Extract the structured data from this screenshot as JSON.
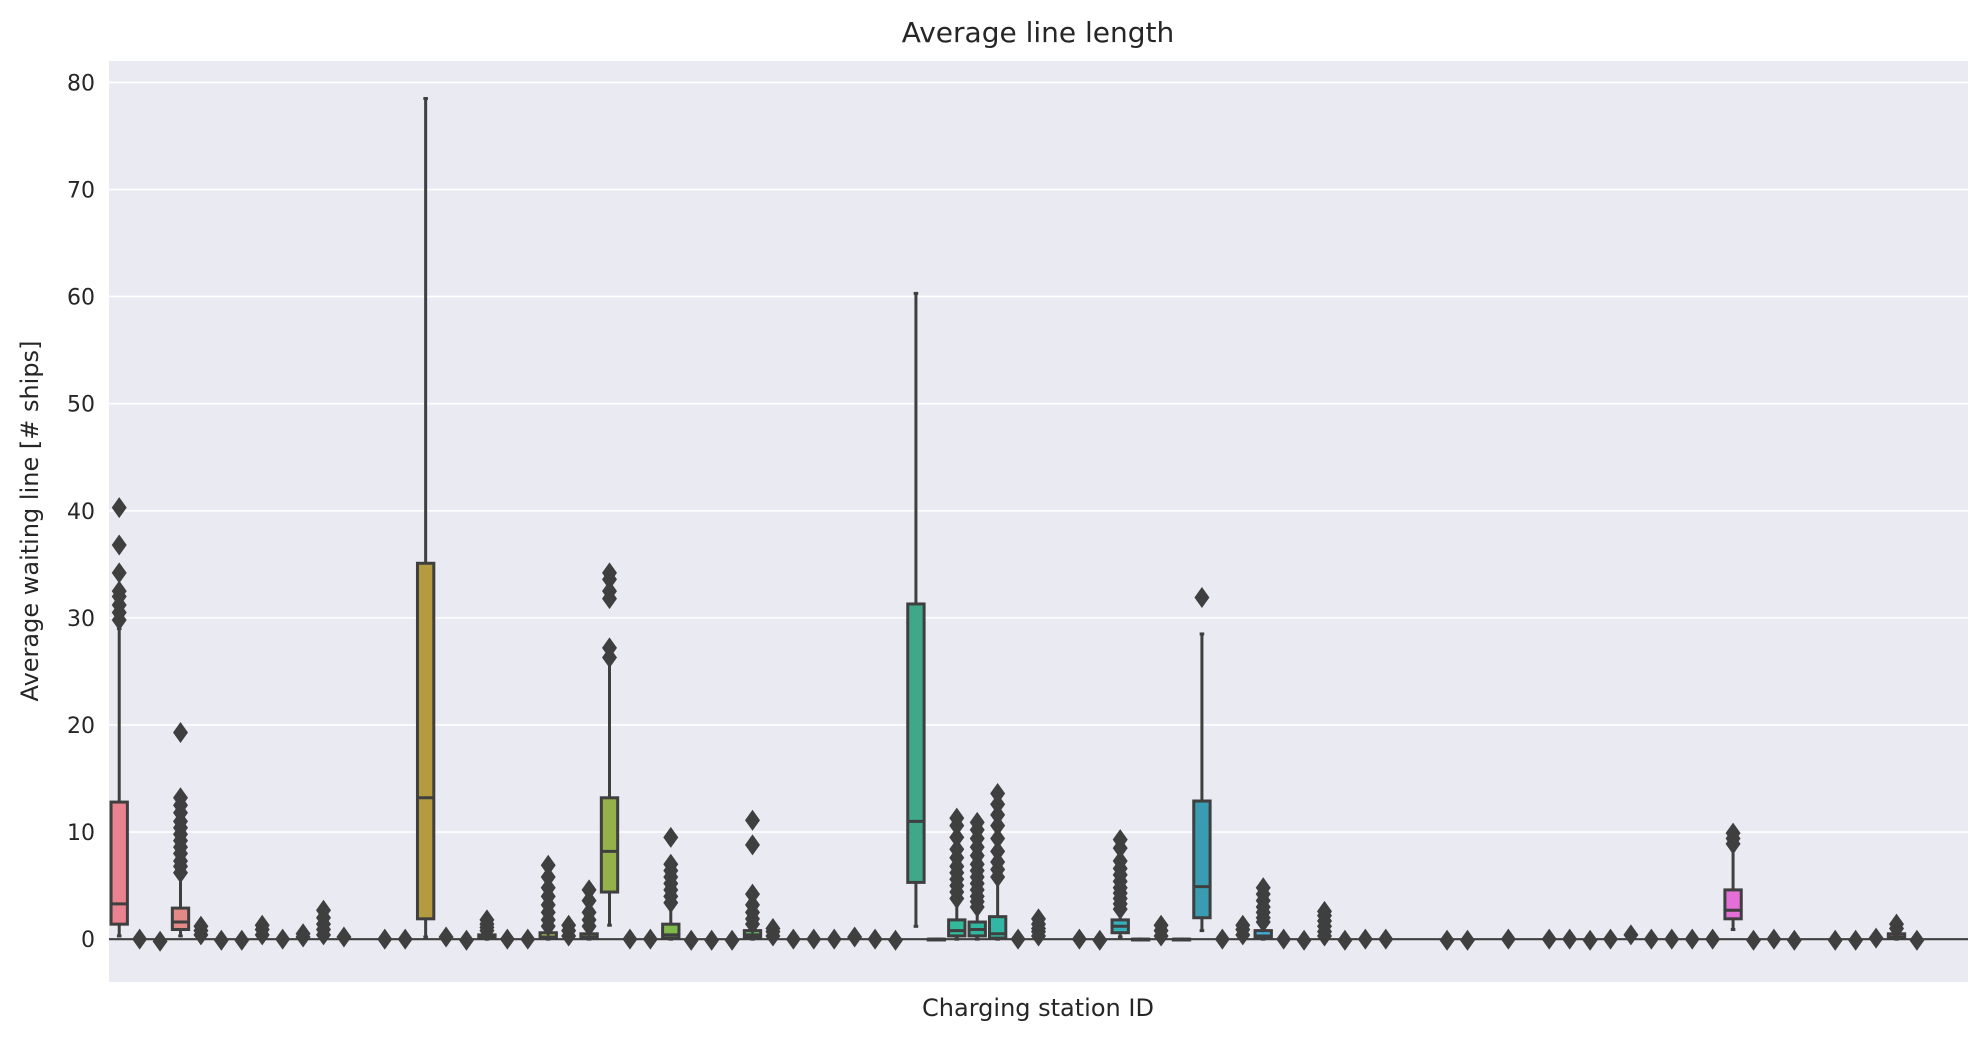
{
  "chart_data": {
    "type": "box",
    "title": "Average line length",
    "xlabel": "Charging station ID",
    "ylabel": "Average waiting line [# ships]",
    "ylim": [
      -4,
      82
    ],
    "yticks": [
      0,
      10,
      20,
      30,
      40,
      50,
      60,
      70,
      80
    ],
    "grid": true,
    "background": "#eaeaf2",
    "box_edge_color": "#3f3f3f",
    "n_positions": 91,
    "boxes": [
      {
        "pos": 0,
        "min": 0.3,
        "q1": 1.4,
        "median": 3.3,
        "q3": 12.8,
        "max": 29,
        "fill": "#e8838f",
        "outliers": [
          29.8,
          30.5,
          31.2,
          32.0,
          32.5,
          34.2,
          36.8,
          40.3
        ]
      },
      {
        "pos": 1,
        "fill": "#e8868c",
        "outliers": [
          0.0
        ]
      },
      {
        "pos": 2,
        "fill": "#e8888a",
        "outliers": [
          -0.2
        ]
      },
      {
        "pos": 3,
        "min": 0.3,
        "q1": 0.9,
        "median": 1.6,
        "q3": 2.9,
        "max": 5.8,
        "fill": "#e38a87",
        "outliers": [
          6.2,
          6.8,
          7.3,
          8.0,
          8.6,
          9.2,
          9.8,
          10.4,
          11.0,
          11.8,
          12.5,
          13.2,
          19.3
        ]
      },
      {
        "pos": 4,
        "fill": "#e08d84",
        "outliers": [
          0.4,
          0.8,
          1.2
        ]
      },
      {
        "pos": 5,
        "fill": "#de9080",
        "outliers": [
          -0.1
        ]
      },
      {
        "pos": 6,
        "fill": "#dc927d",
        "outliers": [
          -0.1
        ]
      },
      {
        "pos": 7,
        "fill": "#d9957a",
        "outliers": [
          0.4,
          0.9,
          1.3
        ]
      },
      {
        "pos": 8,
        "fill": "#d69877",
        "outliers": [
          0.0
        ]
      },
      {
        "pos": 9,
        "fill": "#d29b73",
        "outliers": [
          0.2,
          0.5
        ]
      },
      {
        "pos": 10,
        "fill": "#cf9e70",
        "outliers": [
          0.4,
          0.9,
          1.4,
          2.0,
          2.7
        ]
      },
      {
        "pos": 11,
        "fill": "#cca06c",
        "outliers": [
          0.2
        ]
      },
      {
        "pos": 12,
        "fill": "#c9a369",
        "outliers": []
      },
      {
        "pos": 13,
        "fill": "#c6a566",
        "outliers": [
          0.0
        ]
      },
      {
        "pos": 14,
        "fill": "#c3a764",
        "outliers": [
          0.0
        ]
      },
      {
        "pos": 15,
        "min": 0.2,
        "q1": 1.9,
        "median": 13.2,
        "q3": 35.1,
        "max": 78.5,
        "fill": "#b59b3f",
        "outliers": []
      },
      {
        "pos": 16,
        "fill": "#bdaa5f",
        "outliers": [
          0.2
        ]
      },
      {
        "pos": 17,
        "fill": "#b9ad5c",
        "outliers": [
          -0.1
        ]
      },
      {
        "pos": 18,
        "min": 0.0,
        "q1": 0.1,
        "median": 0.2,
        "q3": 0.4,
        "max": 0.6,
        "fill": "#b5af5a",
        "outliers": [
          0.8,
          1.1,
          1.4,
          1.8
        ]
      },
      {
        "pos": 19,
        "fill": "#b1b158",
        "outliers": [
          0.0
        ]
      },
      {
        "pos": 20,
        "fill": "#adb356",
        "outliers": [
          0.0
        ]
      },
      {
        "pos": 21,
        "min": 0.0,
        "q1": 0.1,
        "median": 0.2,
        "q3": 0.6,
        "max": 0.9,
        "fill": "#a9b554",
        "outliers": [
          1.2,
          1.8,
          2.5,
          3.2,
          4.0,
          4.8,
          5.8,
          6.9
        ]
      },
      {
        "pos": 22,
        "fill": "#a5b652",
        "outliers": [
          0.3,
          0.8,
          1.3
        ]
      },
      {
        "pos": 23,
        "min": 0.0,
        "q1": 0.1,
        "median": 0.2,
        "q3": 0.5,
        "max": 0.8,
        "fill": "#a1b850",
        "outliers": [
          1.2,
          1.8,
          2.5,
          3.6,
          4.6
        ]
      },
      {
        "pos": 24,
        "min": 1.3,
        "q1": 4.4,
        "median": 8.2,
        "q3": 13.2,
        "max": 25.8,
        "fill": "#95b14a",
        "outliers": [
          26.3,
          27.2,
          31.8,
          32.5,
          33.6,
          34.2
        ]
      },
      {
        "pos": 25,
        "fill": "#8eba4f",
        "outliers": [
          0.0
        ]
      },
      {
        "pos": 26,
        "fill": "#87bb51",
        "outliers": [
          0.0
        ]
      },
      {
        "pos": 27,
        "min": 0.0,
        "q1": 0.1,
        "median": 0.4,
        "q3": 1.4,
        "max": 2.9,
        "fill": "#7fb94b",
        "outliers": [
          3.4,
          4.0,
          4.6,
          5.2,
          5.8,
          6.4,
          7.0,
          9.5
        ]
      },
      {
        "pos": 28,
        "fill": "#78bd58",
        "outliers": [
          -0.1
        ]
      },
      {
        "pos": 29,
        "fill": "#70be5c",
        "outliers": [
          -0.1
        ]
      },
      {
        "pos": 30,
        "fill": "#67be61",
        "outliers": [
          -0.1
        ]
      },
      {
        "pos": 31,
        "min": 0.0,
        "q1": 0.2,
        "median": 0.4,
        "q3": 0.8,
        "max": 1.1,
        "fill": "#5ebf66",
        "outliers": [
          1.4,
          1.9,
          2.5,
          3.2,
          4.2,
          8.8,
          11.1
        ]
      },
      {
        "pos": 32,
        "fill": "#55bf6c",
        "outliers": [
          0.3,
          0.7,
          1.0
        ]
      },
      {
        "pos": 33,
        "fill": "#4cbf72",
        "outliers": [
          0.0
        ]
      },
      {
        "pos": 34,
        "fill": "#44be78",
        "outliers": [
          0.0
        ]
      },
      {
        "pos": 35,
        "fill": "#40be7e",
        "outliers": [
          0.0
        ]
      },
      {
        "pos": 36,
        "fill": "#3ebd84",
        "outliers": [
          0.2
        ]
      },
      {
        "pos": 37,
        "fill": "#3cbc89",
        "outliers": [
          0.0
        ]
      },
      {
        "pos": 38,
        "fill": "#3abc8e",
        "outliers": [
          -0.1
        ]
      },
      {
        "pos": 39,
        "min": 1.2,
        "q1": 5.3,
        "median": 11.0,
        "q3": 31.3,
        "max": 60.3,
        "fill": "#3ea889",
        "outliers": []
      },
      {
        "pos": 40,
        "min": 0.0,
        "q1": 0.0,
        "median": 0.0,
        "q3": 0.0,
        "max": 0.0,
        "fill": "#37ba97",
        "outliers": []
      },
      {
        "pos": 41,
        "min": 0.0,
        "q1": 0.3,
        "median": 0.8,
        "q3": 1.8,
        "max": 3.2,
        "fill": "#34b99b",
        "outliers": [
          3.8,
          4.4,
          5.0,
          5.6,
          6.2,
          6.8,
          7.6,
          8.4,
          9.5,
          10.6,
          11.3
        ]
      },
      {
        "pos": 42,
        "min": 0.0,
        "q1": 0.3,
        "median": 0.9,
        "q3": 1.6,
        "max": 2.6,
        "fill": "#32b8a0",
        "outliers": [
          3.0,
          3.5,
          4.0,
          4.6,
          5.2,
          5.8,
          6.4,
          7.0,
          7.8,
          8.6,
          9.4,
          10.2,
          10.9
        ]
      },
      {
        "pos": 43,
        "min": 0.0,
        "q1": 0.1,
        "median": 0.5,
        "q3": 2.1,
        "max": 5.3,
        "fill": "#31b7a4",
        "outliers": [
          5.8,
          6.5,
          7.2,
          8.2,
          9.4,
          10.6,
          11.6,
          12.6,
          13.6
        ]
      },
      {
        "pos": 44,
        "fill": "#31b6a8",
        "outliers": [
          0.0
        ]
      },
      {
        "pos": 45,
        "fill": "#31b5ac",
        "outliers": [
          0.3,
          0.7,
          1.0,
          1.4,
          1.9
        ]
      },
      {
        "pos": 46,
        "fill": "#32b4b0",
        "outliers": []
      },
      {
        "pos": 47,
        "fill": "#33b3b4",
        "outliers": [
          0.0
        ]
      },
      {
        "pos": 48,
        "fill": "#34b2b8",
        "outliers": [
          -0.1
        ]
      },
      {
        "pos": 49,
        "min": 0.2,
        "q1": 0.6,
        "median": 1.2,
        "q3": 1.8,
        "max": 2.4,
        "fill": "#35b1bc",
        "outliers": [
          2.8,
          3.3,
          3.8,
          4.3,
          4.8,
          5.4,
          6.0,
          6.6,
          7.3,
          8.5,
          9.3
        ]
      },
      {
        "pos": 50,
        "min": 0.0,
        "q1": 0.0,
        "median": 0.0,
        "q3": 0.0,
        "max": 0.0,
        "fill": "#36b0c0",
        "outliers": []
      },
      {
        "pos": 51,
        "fill": "#38afc4",
        "outliers": [
          0.3,
          0.8,
          1.3
        ]
      },
      {
        "pos": 52,
        "min": 0.0,
        "q1": 0.0,
        "median": 0.0,
        "q3": 0.0,
        "max": 0.0,
        "fill": "#3aaec8",
        "outliers": []
      },
      {
        "pos": 53,
        "min": 0.8,
        "q1": 2.0,
        "median": 4.9,
        "q3": 12.9,
        "max": 28.5,
        "fill": "#3a9cb3",
        "outliers": [
          31.9
        ]
      },
      {
        "pos": 54,
        "fill": "#3eaccf",
        "outliers": [
          0.0
        ]
      },
      {
        "pos": 55,
        "fill": "#40abd3",
        "outliers": [
          0.4,
          0.9,
          1.3
        ]
      },
      {
        "pos": 56,
        "min": 0.0,
        "q1": 0.1,
        "median": 0.3,
        "q3": 0.8,
        "max": 1.3,
        "fill": "#43aad6",
        "outliers": [
          1.6,
          2.0,
          2.5,
          3.0,
          3.6,
          4.2,
          4.8
        ]
      },
      {
        "pos": 57,
        "fill": "#46a9da",
        "outliers": [
          0.0
        ]
      },
      {
        "pos": 58,
        "fill": "#4aa8dd",
        "outliers": [
          -0.1
        ]
      },
      {
        "pos": 59,
        "fill": "#4fa6e0",
        "outliers": [
          0.3,
          0.7,
          1.2,
          1.7,
          2.2,
          2.6
        ]
      },
      {
        "pos": 60,
        "fill": "#55a4e3",
        "outliers": [
          -0.1
        ]
      },
      {
        "pos": 61,
        "fill": "#5ca2e6",
        "outliers": [
          0.0
        ]
      },
      {
        "pos": 62,
        "fill": "#649fe8",
        "outliers": [
          0.0
        ]
      },
      {
        "pos": 63,
        "fill": "#6d9cea",
        "outliers": []
      },
      {
        "pos": 64,
        "fill": "#7699ec",
        "outliers": []
      },
      {
        "pos": 65,
        "fill": "#7f96ed",
        "outliers": [
          -0.1
        ]
      },
      {
        "pos": 66,
        "fill": "#8893ee",
        "outliers": [
          -0.1
        ]
      },
      {
        "pos": 67,
        "fill": "#9190ee",
        "outliers": []
      },
      {
        "pos": 68,
        "fill": "#9a8cee",
        "outliers": [
          0.0
        ]
      },
      {
        "pos": 69,
        "fill": "#a289ed",
        "outliers": []
      },
      {
        "pos": 70,
        "fill": "#aa86ec",
        "outliers": [
          0.0
        ]
      },
      {
        "pos": 71,
        "fill": "#b183eb",
        "outliers": [
          0.0
        ]
      },
      {
        "pos": 72,
        "fill": "#b880e9",
        "outliers": [
          -0.1
        ]
      },
      {
        "pos": 73,
        "fill": "#bf7de7",
        "outliers": [
          0.0
        ]
      },
      {
        "pos": 74,
        "fill": "#c57ae5",
        "outliers": [
          0.4
        ]
      },
      {
        "pos": 75,
        "fill": "#cb78e2",
        "outliers": [
          0.0
        ]
      },
      {
        "pos": 76,
        "fill": "#d076df",
        "outliers": [
          0.0
        ]
      },
      {
        "pos": 77,
        "fill": "#d574dc",
        "outliers": [
          0.0
        ]
      },
      {
        "pos": 78,
        "fill": "#da73d8",
        "outliers": [
          0.0
        ]
      },
      {
        "pos": 79,
        "min": 0.9,
        "q1": 1.9,
        "median": 2.7,
        "q3": 4.6,
        "max": 8.3,
        "fill": "#e46fd6",
        "outliers": [
          8.9,
          9.4,
          9.9
        ]
      },
      {
        "pos": 80,
        "fill": "#e171d0",
        "outliers": [
          -0.1
        ]
      },
      {
        "pos": 81,
        "fill": "#e371cb",
        "outliers": [
          0.0
        ]
      },
      {
        "pos": 82,
        "fill": "#e572c6",
        "outliers": [
          -0.1
        ]
      },
      {
        "pos": 83,
        "fill": "#e674c1",
        "outliers": []
      },
      {
        "pos": 84,
        "fill": "#e775bc",
        "outliers": [
          -0.1
        ]
      },
      {
        "pos": 85,
        "fill": "#e777b7",
        "outliers": [
          -0.1
        ]
      },
      {
        "pos": 86,
        "fill": "#e779b2",
        "outliers": [
          0.1
        ]
      },
      {
        "pos": 87,
        "min": 0.0,
        "q1": 0.1,
        "median": 0.2,
        "q3": 0.5,
        "max": 0.7,
        "fill": "#e77bad",
        "outliers": [
          1.0,
          1.4
        ]
      },
      {
        "pos": 88,
        "fill": "#e77da8",
        "outliers": [
          -0.1
        ]
      },
      {
        "pos": 89,
        "fill": "#e77fa3",
        "outliers": []
      },
      {
        "pos": 90,
        "fill": "#e7819e",
        "outliers": []
      }
    ]
  }
}
